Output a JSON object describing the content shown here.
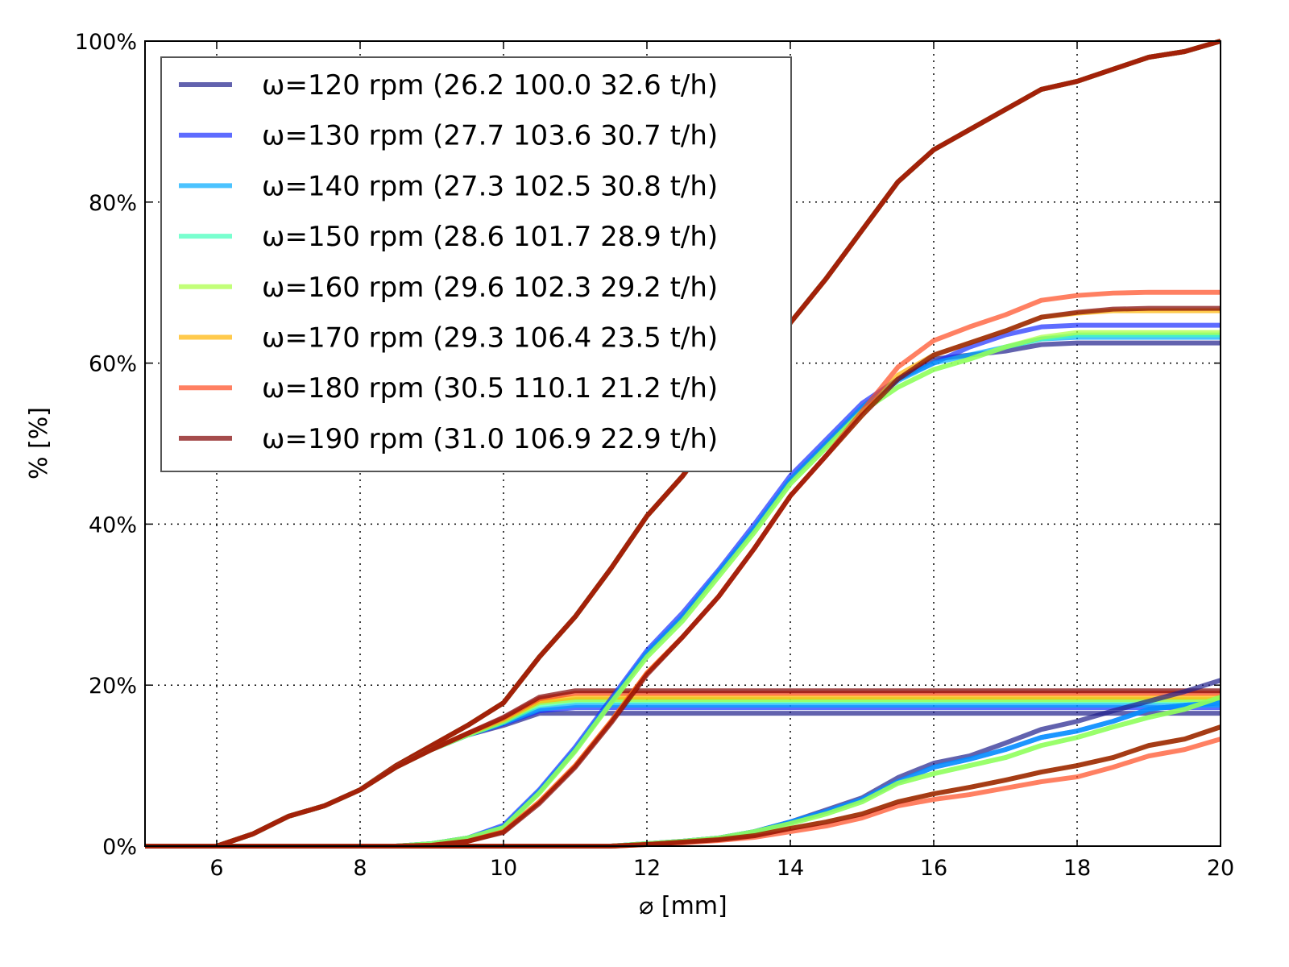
{
  "chart_data": {
    "type": "line",
    "xlabel": "⌀ [mm]",
    "ylabel": "% [%]",
    "xlim": [
      5,
      20
    ],
    "ylim": [
      0,
      100
    ],
    "x_ticks": [
      6,
      8,
      10,
      12,
      14,
      16,
      18,
      20
    ],
    "y_ticks": [
      0,
      20,
      40,
      60,
      80,
      100
    ],
    "y_tick_labels": [
      "0%",
      "20%",
      "40%",
      "60%",
      "80%",
      "100%"
    ],
    "grid": true,
    "legend_placement": "top-left",
    "x": [
      5,
      5.5,
      6,
      6.5,
      7,
      7.5,
      8,
      8.5,
      9,
      9.5,
      10,
      10.5,
      11,
      11.5,
      12,
      12.5,
      13,
      13.5,
      14,
      14.5,
      15,
      15.5,
      16,
      16.5,
      17,
      17.5,
      18,
      18.5,
      19,
      19.5,
      20
    ],
    "series": [
      {
        "name": "ω=120 rpm (26.2 100.0 32.6 t/h)",
        "color": "#1f1f8c",
        "curves": [
          [
            0,
            0,
            0,
            1.5,
            3.7,
            5,
            7,
            10,
            12.5,
            15,
            17.8,
            23.5,
            28.5,
            34.5,
            41,
            46,
            52,
            58,
            65,
            70.5,
            76.5,
            82.5,
            86.5,
            89,
            91.5,
            94,
            95,
            96.5,
            98,
            98.7,
            100
          ],
          [
            0,
            0,
            0,
            1.5,
            3.7,
            5,
            7,
            9.8,
            12,
            13.8,
            15,
            16.5,
            16.5,
            16.5,
            16.5,
            16.5,
            16.5,
            16.5,
            16.5,
            16.5,
            16.5,
            16.5,
            16.5,
            16.5,
            16.5,
            16.5,
            16.5,
            16.5,
            16.5,
            16.5,
            16.5
          ],
          [
            0,
            0,
            0,
            0,
            0,
            0,
            0,
            0,
            0.3,
            1,
            2.4,
            6.8,
            12,
            18,
            24,
            28.5,
            34,
            39.5,
            45.5,
            50,
            54.5,
            58,
            60.5,
            61,
            61.5,
            62.3,
            62.5,
            62.5,
            62.5,
            62.5,
            62.5
          ],
          [
            0,
            0,
            0,
            0,
            0,
            0,
            0,
            0,
            0,
            0,
            0,
            0,
            0,
            0,
            0.3,
            0.6,
            1,
            1.8,
            3,
            4.5,
            6,
            8.5,
            10.3,
            11.2,
            12.8,
            14.5,
            15.5,
            16.8,
            18,
            19.2,
            20.6
          ]
        ]
      },
      {
        "name": "ω=130 rpm (27.7 103.6 30.7 t/h)",
        "color": "#1a2eff",
        "curves": [
          [
            0,
            0,
            0,
            1.5,
            3.7,
            5,
            7,
            10,
            12.5,
            15,
            17.8,
            23.5,
            28.5,
            34.5,
            41,
            46,
            52,
            58,
            65,
            70.5,
            76.5,
            82.5,
            86.5,
            89,
            91.5,
            94,
            95,
            96.5,
            98,
            98.7,
            100
          ],
          [
            0,
            0,
            0,
            1.5,
            3.7,
            5,
            7,
            9.8,
            12,
            13.8,
            15.2,
            16.8,
            17.2,
            17.2,
            17.2,
            17.2,
            17.2,
            17.2,
            17.2,
            17.2,
            17.2,
            17.2,
            17.2,
            17.2,
            17.2,
            17.2,
            17.2,
            17.2,
            17.2,
            17.2,
            17.2
          ],
          [
            0,
            0,
            0,
            0,
            0,
            0,
            0,
            0,
            0.3,
            1,
            2.6,
            7,
            12.3,
            18.3,
            24.3,
            29,
            34.3,
            40,
            46,
            50.5,
            55,
            58,
            60,
            62,
            63.5,
            64.5,
            64.7,
            64.7,
            64.7,
            64.7,
            64.7
          ],
          [
            0,
            0,
            0,
            0,
            0,
            0,
            0,
            0,
            0,
            0,
            0,
            0,
            0,
            0,
            0.3,
            0.6,
            1,
            1.8,
            3,
            4.3,
            5.8,
            8,
            9.8,
            10.8,
            12,
            13.5,
            14.3,
            15.5,
            17,
            17.5,
            17.8
          ]
        ]
      },
      {
        "name": "ω=140 rpm (27.3 102.5 30.8 t/h)",
        "color": "#00aaff",
        "curves": [
          [
            0,
            0,
            0,
            1.5,
            3.7,
            5,
            7,
            10,
            12.5,
            15,
            17.8,
            23.5,
            28.5,
            34.5,
            41,
            46,
            52,
            58,
            65,
            70.5,
            76.5,
            82.5,
            86.5,
            89,
            91.5,
            94,
            95,
            96.5,
            98,
            98.7,
            100
          ],
          [
            0,
            0,
            0,
            1.5,
            3.7,
            5,
            7,
            9.8,
            12,
            13.8,
            15.3,
            17,
            17.5,
            17.5,
            17.5,
            17.5,
            17.5,
            17.5,
            17.5,
            17.5,
            17.5,
            17.5,
            17.5,
            17.5,
            17.5,
            17.5,
            17.5,
            17.5,
            17.5,
            17.5,
            17.5
          ],
          [
            0,
            0,
            0,
            0,
            0,
            0,
            0,
            0,
            0.3,
            1,
            2.4,
            6.8,
            12,
            18,
            24,
            28.5,
            34,
            39.5,
            45.5,
            50,
            54.5,
            57.8,
            60,
            61,
            62,
            63,
            63.2,
            63.2,
            63.2,
            63.2,
            63.2
          ],
          [
            0,
            0,
            0,
            0,
            0,
            0,
            0,
            0,
            0,
            0,
            0,
            0,
            0,
            0,
            0.3,
            0.6,
            1,
            1.8,
            3,
            4.3,
            5.8,
            8,
            9.8,
            10.8,
            12,
            13.5,
            14.3,
            15.5,
            17,
            17.5,
            17.8
          ]
        ]
      },
      {
        "name": "ω=150 rpm (28.6 101.7 28.9 t/h)",
        "color": "#40ffbb",
        "curves": [
          [
            0,
            0,
            0,
            1.5,
            3.7,
            5,
            7,
            10,
            12.5,
            15,
            17.8,
            23.5,
            28.5,
            34.5,
            41,
            46,
            52,
            58,
            65,
            70.5,
            76.5,
            82.5,
            86.5,
            89,
            91.5,
            94,
            95,
            96.5,
            98,
            98.7,
            100
          ],
          [
            0,
            0,
            0,
            1.5,
            3.7,
            5,
            7,
            9.8,
            12,
            13.8,
            15.4,
            17.5,
            18,
            18,
            18,
            18,
            18,
            18,
            18,
            18,
            18,
            18,
            18,
            18,
            18,
            18,
            18,
            18,
            18,
            18,
            18
          ],
          [
            0,
            0,
            0,
            0,
            0,
            0,
            0,
            0,
            0.3,
            1,
            2.3,
            6.6,
            11.8,
            17.8,
            23.5,
            28,
            33.5,
            39,
            45,
            49.5,
            54,
            57,
            59.2,
            60.5,
            62,
            63,
            63.5,
            63.5,
            63.5,
            63.5,
            63.5
          ],
          [
            0,
            0,
            0,
            0,
            0,
            0,
            0,
            0,
            0,
            0,
            0,
            0,
            0,
            0,
            0.3,
            0.6,
            1,
            1.8,
            2.8,
            4,
            5.5,
            7.8,
            9,
            10,
            11,
            12.5,
            13.5,
            14.8,
            16,
            17,
            18.5
          ]
        ]
      },
      {
        "name": "ω=160 rpm (29.6 102.3 29.2 t/h)",
        "color": "#a8ff40",
        "curves": [
          [
            0,
            0,
            0,
            1.5,
            3.7,
            5,
            7,
            10,
            12.5,
            15,
            17.8,
            23.5,
            28.5,
            34.5,
            41,
            46,
            52,
            58,
            65,
            70.5,
            76.5,
            82.5,
            86.5,
            89,
            91.5,
            94,
            95,
            96.5,
            98,
            98.7,
            100
          ],
          [
            0,
            0,
            0,
            1.5,
            3.7,
            5,
            7,
            9.8,
            12,
            13.8,
            15.5,
            17.8,
            18.2,
            18.2,
            18.2,
            18.2,
            18.2,
            18.2,
            18.2,
            18.2,
            18.2,
            18.2,
            18.2,
            18.2,
            18.2,
            18.2,
            18.2,
            18.2,
            18.2,
            18.2,
            18.2
          ],
          [
            0,
            0,
            0,
            0,
            0,
            0,
            0,
            0,
            0.3,
            1,
            2.3,
            6.6,
            11.8,
            17.8,
            23.5,
            28,
            33.5,
            39,
            45,
            49.5,
            54,
            57,
            59.2,
            60.5,
            62,
            63.2,
            63.8,
            63.8,
            63.8,
            63.8,
            63.8
          ],
          [
            0,
            0,
            0,
            0,
            0,
            0,
            0,
            0,
            0,
            0,
            0,
            0,
            0,
            0,
            0.3,
            0.6,
            1,
            1.8,
            2.8,
            4,
            5.5,
            7.8,
            9,
            10,
            11,
            12.5,
            13.5,
            14.8,
            16,
            17,
            18.5
          ]
        ]
      },
      {
        "name": "ω=170 rpm (29.3 106.4 23.5 t/h)",
        "color": "#ffb400",
        "curves": [
          [
            0,
            0,
            0,
            1.5,
            3.7,
            5,
            7,
            10,
            12.5,
            15,
            17.8,
            23.5,
            28.5,
            34.5,
            41,
            46,
            52,
            58,
            65,
            70.5,
            76.5,
            82.5,
            86.5,
            89,
            91.5,
            94,
            95,
            96.5,
            98,
            98.7,
            100
          ],
          [
            0,
            0,
            0,
            1.5,
            3.7,
            5,
            7,
            9.8,
            12,
            14,
            15.7,
            18,
            18.5,
            18.5,
            18.5,
            18.5,
            18.5,
            18.5,
            18.5,
            18.5,
            18.5,
            18.5,
            18.5,
            18.5,
            18.5,
            18.5,
            18.5,
            18.5,
            18.5,
            18.5,
            18.5
          ],
          [
            0,
            0,
            0,
            0,
            0,
            0,
            0,
            0,
            0.1,
            0.6,
            1.8,
            5.5,
            10,
            15.5,
            21.5,
            26,
            31,
            37,
            43.5,
            48.5,
            53.5,
            58.5,
            61,
            62.5,
            64,
            65.7,
            66.2,
            66.5,
            66.5,
            66.5,
            66.5
          ],
          [
            0,
            0,
            0,
            0,
            0,
            0,
            0,
            0,
            0,
            0,
            0,
            0,
            0,
            0,
            0.2,
            0.5,
            0.8,
            1.3,
            2.2,
            3,
            4,
            5.5,
            6.5,
            7.3,
            8.2,
            9.2,
            10,
            11,
            12.5,
            13.3,
            14.8
          ]
        ]
      },
      {
        "name": "ω=180 rpm (30.5 110.1 21.2 t/h)",
        "color": "#ff4a1f",
        "curves": [
          [
            0,
            0,
            0,
            1.5,
            3.7,
            5,
            7,
            10,
            12.5,
            15,
            17.8,
            23.5,
            28.5,
            34.5,
            41,
            46,
            52,
            58,
            65,
            70.5,
            76.5,
            82.5,
            86.5,
            89,
            91.5,
            94,
            95,
            96.5,
            98,
            98.7,
            100
          ],
          [
            0,
            0,
            0,
            1.5,
            3.7,
            5,
            7,
            9.8,
            12,
            14,
            15.9,
            18.3,
            19,
            19,
            19,
            19,
            19,
            19,
            19,
            19,
            19,
            19,
            19,
            19,
            19,
            19,
            19,
            19,
            19,
            19,
            19
          ],
          [
            0,
            0,
            0,
            0,
            0,
            0,
            0,
            0,
            0.1,
            0.6,
            1.8,
            5.5,
            10,
            15.5,
            21.5,
            26,
            31,
            37,
            43.5,
            48.5,
            54,
            59.5,
            62.8,
            64.5,
            66,
            67.8,
            68.4,
            68.7,
            68.8,
            68.8,
            68.8
          ],
          [
            0,
            0,
            0,
            0,
            0,
            0,
            0,
            0,
            0,
            0,
            0,
            0,
            0,
            0,
            0.2,
            0.4,
            0.7,
            1.1,
            1.8,
            2.5,
            3.5,
            5,
            5.8,
            6.4,
            7.2,
            8,
            8.6,
            9.8,
            11.2,
            12,
            13.3
          ]
        ]
      },
      {
        "name": "ω=190 rpm (31.0 106.9 22.9 t/h)",
        "color": "#7f0000",
        "curves": [
          [
            0,
            0,
            0,
            1.5,
            3.7,
            5,
            7,
            10,
            12.5,
            15,
            17.8,
            23.5,
            28.5,
            34.5,
            41,
            46,
            52,
            58,
            65,
            70.5,
            76.5,
            82.5,
            86.5,
            89,
            91.5,
            94,
            95,
            96.5,
            98,
            98.7,
            100
          ],
          [
            0,
            0,
            0,
            1.5,
            3.7,
            5,
            7,
            9.8,
            12,
            14,
            16,
            18.5,
            19.3,
            19.3,
            19.3,
            19.3,
            19.3,
            19.3,
            19.3,
            19.3,
            19.3,
            19.3,
            19.3,
            19.3,
            19.3,
            19.3,
            19.3,
            19.3,
            19.3,
            19.3,
            19.3
          ],
          [
            0,
            0,
            0,
            0,
            0,
            0,
            0,
            0,
            0.1,
            0.6,
            1.7,
            5.3,
            9.8,
            15.3,
            21.3,
            26,
            31,
            37,
            43.5,
            48.5,
            53.5,
            58,
            61,
            62.5,
            64,
            65.7,
            66.3,
            66.7,
            66.8,
            66.8,
            66.8
          ],
          [
            0,
            0,
            0,
            0,
            0,
            0,
            0,
            0,
            0,
            0,
            0,
            0,
            0,
            0,
            0.2,
            0.5,
            0.8,
            1.3,
            2.2,
            3,
            4,
            5.5,
            6.5,
            7.3,
            8.2,
            9.2,
            10,
            11,
            12.5,
            13.3,
            14.8
          ]
        ]
      }
    ]
  }
}
